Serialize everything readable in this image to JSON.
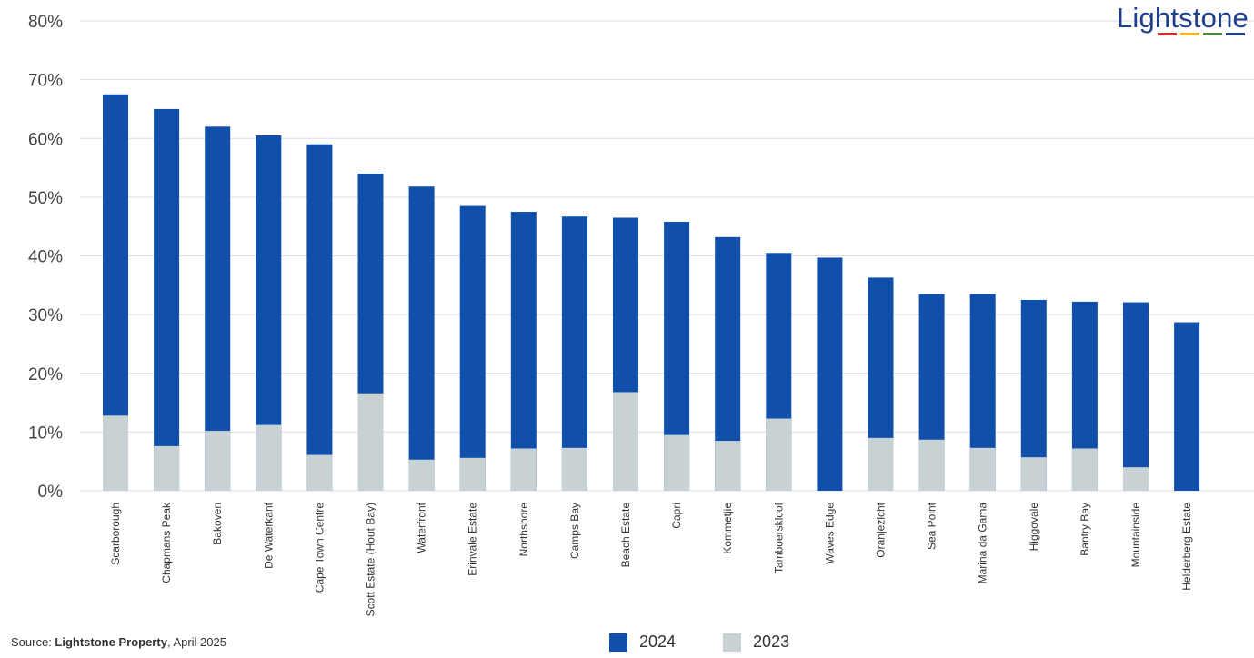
{
  "brand": {
    "logo_text": "Lightstone",
    "logo_color": "#1e3f8a",
    "logo_bar_colors": [
      "#c8322b",
      "#f0b323",
      "#4f8a3c",
      "#1e3f8a"
    ]
  },
  "source": {
    "prefix": "Source: ",
    "org": "Lightstone Property",
    "date": ", April 2025"
  },
  "colors": {
    "series_2024": "#1050aa",
    "series_2023": "#c8d2d5",
    "grid": "#e1dbe7",
    "axis_text": "#444444"
  },
  "chart_data": {
    "type": "bar",
    "stacked": true,
    "title": "",
    "xlabel": "",
    "ylabel": "",
    "ylim": [
      0,
      80
    ],
    "yticks": [
      "0%",
      "10%",
      "20%",
      "30%",
      "40%",
      "50%",
      "60%",
      "70%",
      "80%"
    ],
    "ytick_values": [
      0,
      10,
      20,
      30,
      40,
      50,
      60,
      70,
      80
    ],
    "grid": true,
    "legend_position": "bottom",
    "categories": [
      "Scarborough",
      "Chapmans Peak",
      "Bakoven",
      "De Waterkant",
      "Cape Town Centre",
      "Scott Estate (Hout Bay)",
      "Waterfront",
      "Erinvale Estate",
      "Northshore",
      "Camps Bay",
      "Beach Estate",
      "Capri",
      "Kommetjie",
      "Tamboerskloof",
      "Waves Edge",
      "Oranjezicht",
      "Sea Point",
      "Marina da Gama",
      "Higgovale",
      "Bantry Bay",
      "Mountainside",
      "Helderberg Estate"
    ],
    "series": [
      {
        "name": "2024",
        "values": [
          67.5,
          65.0,
          62.0,
          60.5,
          59.0,
          54.0,
          51.8,
          48.5,
          47.5,
          46.7,
          46.5,
          45.8,
          43.2,
          40.5,
          39.7,
          36.3,
          33.5,
          33.5,
          32.5,
          32.2,
          32.1,
          28.7
        ]
      },
      {
        "name": "2023",
        "values": [
          12.8,
          7.6,
          10.2,
          11.2,
          6.1,
          16.6,
          5.3,
          5.6,
          7.2,
          7.3,
          16.8,
          9.5,
          8.5,
          12.3,
          0,
          9.0,
          8.7,
          7.3,
          5.7,
          7.2,
          4.0,
          0
        ]
      }
    ]
  }
}
